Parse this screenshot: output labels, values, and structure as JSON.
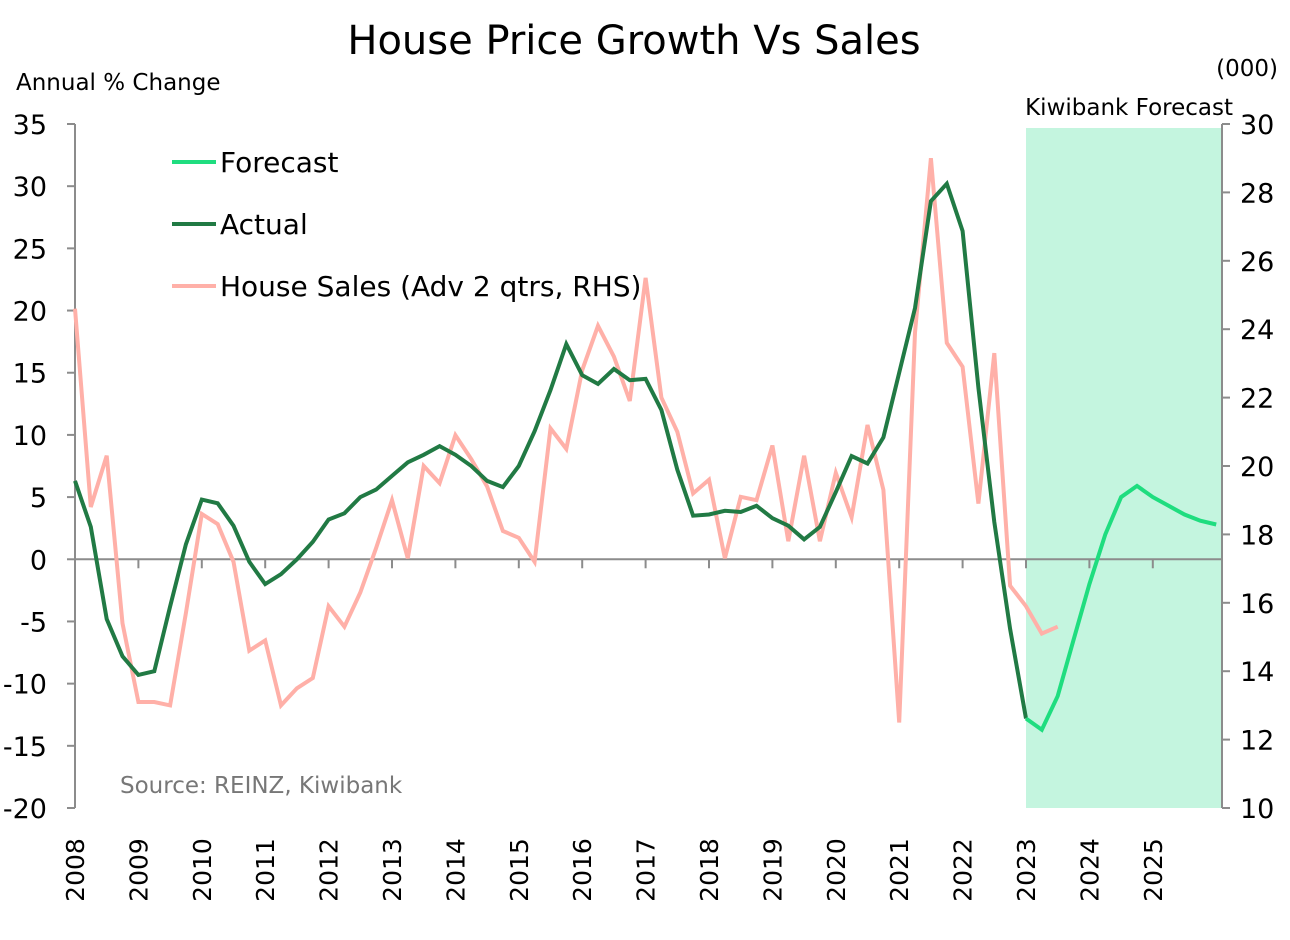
{
  "chart_data": {
    "type": "line",
    "title": "House Price Growth Vs Sales",
    "ylabel_left": "Annual % Change",
    "ylabel_right": "(000)",
    "shade_label": "Kiwibank Forecast",
    "source": "Source: REINZ, Kiwibank",
    "left_axis": {
      "min": -20,
      "max": 35,
      "step": 5,
      "ticks": [
        "35",
        "30",
        "25",
        "20",
        "15",
        "10",
        "5",
        "0",
        "-5",
        "-10",
        "-15",
        "-20"
      ]
    },
    "right_axis": {
      "min": 10,
      "max": 30,
      "step": 2,
      "ticks": [
        "30",
        "28",
        "26",
        "24",
        "22",
        "20",
        "18",
        "16",
        "14",
        "12",
        "10"
      ]
    },
    "x_axis": {
      "start_year": 2008,
      "frequency": "quarterly",
      "end_year_exclusive": 2026,
      "year_labels": [
        "2008",
        "2009",
        "2010",
        "2011",
        "2012",
        "2013",
        "2014",
        "2015",
        "2016",
        "2017",
        "2018",
        "2019",
        "2020",
        "2021",
        "2022",
        "2023",
        "2024",
        "2025"
      ]
    },
    "forecast_shade": {
      "from_quarter_index": 60,
      "to_quarter_index": 72,
      "color": "#c4f5df"
    },
    "legend": {
      "placement": "top-left",
      "items": [
        {
          "label": "Forecast",
          "color": "#1fdd7f"
        },
        {
          "label": "Actual",
          "color": "#217a44"
        },
        {
          "label": "House Sales (Adv 2 qtrs, RHS)",
          "color": "#ffb0a8"
        }
      ]
    },
    "series": [
      {
        "name": "Actual",
        "axis": "left",
        "color": "#217a44",
        "start_index": 0,
        "values": [
          6.3,
          2.6,
          -4.8,
          -7.8,
          -9.3,
          -9.0,
          -3.8,
          1.2,
          4.8,
          4.5,
          2.7,
          -0.2,
          -2.0,
          -1.2,
          0.0,
          1.4,
          3.2,
          3.7,
          5.0,
          5.6,
          6.7,
          7.8,
          8.4,
          9.1,
          8.4,
          7.5,
          6.3,
          5.8,
          7.5,
          10.3,
          13.6,
          17.3,
          14.8,
          14.1,
          15.3,
          14.4,
          14.5,
          12.0,
          7.2,
          3.5,
          3.6,
          3.9,
          3.8,
          4.3,
          3.3,
          2.7,
          1.6,
          2.6,
          5.4,
          8.3,
          7.7,
          9.8,
          15.0,
          20.2,
          28.8,
          30.2,
          26.4,
          13.8,
          3.0,
          -5.6,
          -12.8
        ]
      },
      {
        "name": "Forecast",
        "axis": "left",
        "color": "#1fdd7f",
        "start_index": 60,
        "values": [
          -12.8,
          -13.7,
          -11.0,
          -6.5,
          -2.0,
          2.0,
          5.0,
          5.9,
          5.0,
          4.3,
          3.6,
          3.1,
          2.8
        ]
      },
      {
        "name": "House Sales (Adv 2 qtrs, RHS)",
        "axis": "right",
        "color": "#ffb0a8",
        "start_index": 0,
        "values": [
          24.6,
          18.8,
          20.3,
          15.4,
          13.1,
          13.1,
          13.0,
          15.7,
          18.6,
          18.3,
          17.2,
          14.6,
          14.9,
          13.0,
          13.5,
          13.8,
          15.9,
          15.3,
          16.3,
          17.6,
          19.0,
          17.3,
          20.0,
          19.5,
          20.9,
          20.2,
          19.4,
          18.1,
          17.9,
          17.2,
          21.1,
          20.5,
          22.8,
          24.1,
          23.2,
          21.9,
          25.5,
          22.0,
          21.0,
          19.2,
          19.6,
          17.3,
          19.1,
          19.0,
          20.6,
          17.8,
          20.3,
          17.8,
          19.8,
          18.5,
          21.2,
          19.3,
          12.5,
          23.9,
          29.0,
          23.6,
          22.9,
          18.9,
          23.3,
          16.5,
          15.9,
          15.1,
          15.3
        ]
      }
    ]
  }
}
